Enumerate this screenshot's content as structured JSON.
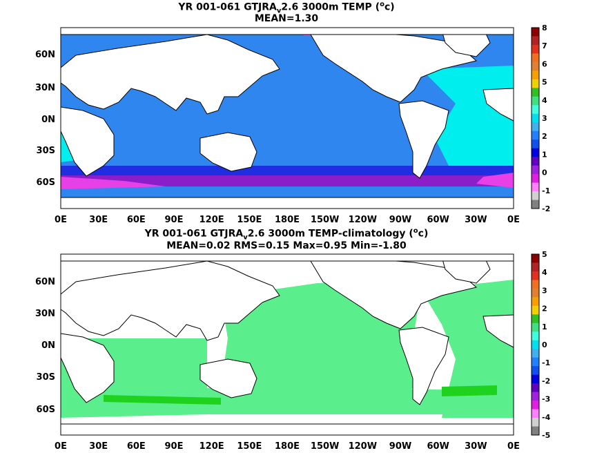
{
  "panels": [
    {
      "title_line1_pre": "YR 001-061 GTJRA",
      "title_line1_sub": "v",
      "title_line1_post": "2.6 3000m TEMP (",
      "title_line1_sup": "o",
      "title_line1_end": "c)",
      "title_line2": "MEAN=1.30",
      "colorbar": {
        "labels": [
          "8",
          "7",
          "6",
          "5",
          "4",
          "3",
          "2",
          "1",
          "0",
          "-1",
          "-2"
        ],
        "colors": [
          "#8b0000",
          "#b22222",
          "#e0301e",
          "#f07020",
          "#e08030",
          "#f5a000",
          "#f0d000",
          "#30c020",
          "#40e080",
          "#40ffe0",
          "#00e0f0",
          "#40b0f0",
          "#2080ff",
          "#1050f0",
          "#0000e0",
          "#6000c0",
          "#a020e0",
          "#e020e0",
          "#ff80ff",
          "#d0d0d0",
          "#808080"
        ]
      }
    },
    {
      "title_line1_pre": "YR 001-061 GTJRA",
      "title_line1_sub": "v",
      "title_line1_post": "2.6 3000m TEMP-climatology (",
      "title_line1_sup": "o",
      "title_line1_end": "c)",
      "title_line2": "MEAN=0.02   RMS=0.15   Max=0.95   Min=-1.80",
      "colorbar": {
        "labels": [
          "5",
          "4",
          "3",
          "2",
          "1",
          "0",
          "-1",
          "-2",
          "-3",
          "-4",
          "-5"
        ],
        "colors": [
          "#8b0000",
          "#b22222",
          "#e0301e",
          "#f07020",
          "#e08030",
          "#f5a000",
          "#f0d000",
          "#30c020",
          "#40e080",
          "#40ffe0",
          "#00e0f0",
          "#40b0f0",
          "#2080ff",
          "#1050f0",
          "#0000e0",
          "#6000c0",
          "#a020e0",
          "#e020e0",
          "#ff80ff",
          "#d0d0d0",
          "#808080"
        ]
      }
    }
  ],
  "lat_labels": [
    "60N",
    "30N",
    "0N",
    "30S",
    "60S"
  ],
  "lon_labels": [
    "0E",
    "30E",
    "60E",
    "90E",
    "120E",
    "150E",
    "180E",
    "150W",
    "120W",
    "90W",
    "60W",
    "30W",
    "0E"
  ],
  "field_colors": {
    "top_main": "#2f86ee",
    "top_cyan": "#00eeee",
    "top_blue": "#1e2ee0",
    "top_purple": "#8a1ec8",
    "top_magenta": "#e640e6",
    "bottom_main": "#5aee8c",
    "bottom_dark": "#1ed21e",
    "bottom_cyan": "#40f0e0",
    "land": "#ffffff"
  }
}
